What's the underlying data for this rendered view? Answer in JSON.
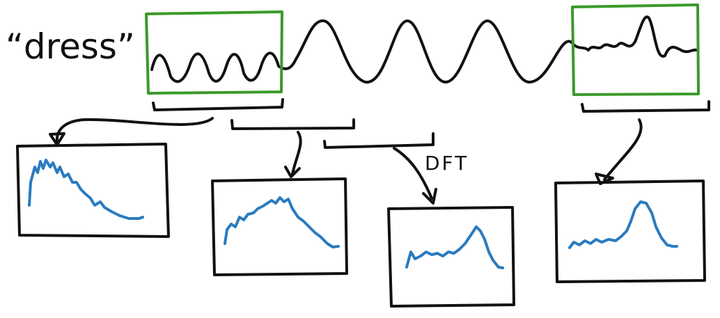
{
  "word": "“dress”",
  "label": "DFT"
}
